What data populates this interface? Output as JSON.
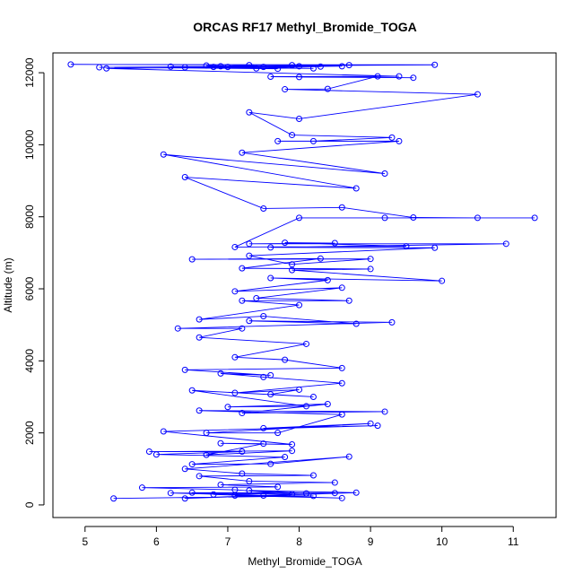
{
  "chart_data": {
    "type": "line",
    "title": "ORCAS RF17 Methyl_Bromide_TOGA",
    "xlabel": "Methyl_Bromide_TOGA",
    "ylabel": "Altitude (m)",
    "xlim": [
      4.55,
      11.6
    ],
    "ylim": [
      -350,
      12550
    ],
    "xticks": [
      5,
      6,
      7,
      8,
      9,
      10,
      11
    ],
    "yticks": [
      0,
      2000,
      4000,
      6000,
      8000,
      10000,
      12000
    ],
    "grid": false,
    "series": [
      {
        "color": "#0000ff",
        "marker": "open-circle",
        "points": [
          [
            5.4,
            180
          ],
          [
            8.2,
            250
          ],
          [
            7.1,
            260
          ],
          [
            8.6,
            190
          ],
          [
            6.8,
            290
          ],
          [
            8.5,
            330
          ],
          [
            6.5,
            340
          ],
          [
            7.5,
            260
          ],
          [
            6.2,
            330
          ],
          [
            8.1,
            320
          ],
          [
            7.3,
            400
          ],
          [
            8.8,
            340
          ],
          [
            6.4,
            180
          ],
          [
            7.9,
            300
          ],
          [
            7.1,
            420
          ],
          [
            5.8,
            480
          ],
          [
            7.7,
            500
          ],
          [
            6.9,
            560
          ],
          [
            8.5,
            620
          ],
          [
            7.3,
            660
          ],
          [
            6.6,
            800
          ],
          [
            8.2,
            820
          ],
          [
            7.2,
            870
          ],
          [
            6.4,
            1000
          ],
          [
            8.7,
            1340
          ],
          [
            7.6,
            1140
          ],
          [
            6.5,
            1130
          ],
          [
            7.8,
            1330
          ],
          [
            6.0,
            1400
          ],
          [
            7.2,
            1480
          ],
          [
            5.9,
            1480
          ],
          [
            7.9,
            1500
          ],
          [
            6.7,
            1390
          ],
          [
            7.5,
            1700
          ],
          [
            6.9,
            1710
          ],
          [
            7.9,
            1680
          ],
          [
            6.1,
            2040
          ],
          [
            9.1,
            2200
          ],
          [
            7.5,
            2130
          ],
          [
            9.0,
            2260
          ],
          [
            6.7,
            2000
          ],
          [
            7.7,
            2000
          ],
          [
            8.6,
            2510
          ],
          [
            6.6,
            2620
          ],
          [
            9.2,
            2590
          ],
          [
            7.2,
            2550
          ],
          [
            8.4,
            2800
          ],
          [
            7.0,
            2720
          ],
          [
            8.1,
            2740
          ],
          [
            6.5,
            3180
          ],
          [
            8.2,
            3000
          ],
          [
            7.6,
            3070
          ],
          [
            8.0,
            3200
          ],
          [
            7.1,
            3110
          ],
          [
            8.6,
            3380
          ],
          [
            7.5,
            3550
          ],
          [
            6.9,
            3650
          ],
          [
            7.6,
            3600
          ],
          [
            6.4,
            3750
          ],
          [
            8.6,
            3800
          ],
          [
            7.8,
            4030
          ],
          [
            7.1,
            4100
          ],
          [
            8.1,
            4470
          ],
          [
            6.6,
            4650
          ],
          [
            7.2,
            4900
          ],
          [
            6.3,
            4900
          ],
          [
            9.3,
            5070
          ],
          [
            7.3,
            5110
          ],
          [
            8.8,
            5030
          ],
          [
            7.5,
            5240
          ],
          [
            6.6,
            5150
          ],
          [
            8.0,
            5550
          ],
          [
            7.2,
            5670
          ],
          [
            8.7,
            5670
          ],
          [
            7.4,
            5740
          ],
          [
            8.6,
            6030
          ],
          [
            7.1,
            5930
          ],
          [
            8.4,
            6240
          ],
          [
            7.6,
            6300
          ],
          [
            10.0,
            6220
          ],
          [
            7.9,
            6520
          ],
          [
            9.0,
            6550
          ],
          [
            7.2,
            6570
          ],
          [
            8.3,
            6840
          ],
          [
            6.5,
            6820
          ],
          [
            9.0,
            6830
          ],
          [
            7.9,
            6680
          ],
          [
            7.3,
            6920
          ],
          [
            9.9,
            7140
          ],
          [
            7.6,
            7150
          ],
          [
            10.9,
            7250
          ],
          [
            7.3,
            7250
          ],
          [
            8.5,
            7270
          ],
          [
            7.8,
            7280
          ],
          [
            9.5,
            7180
          ],
          [
            7.1,
            7160
          ],
          [
            8.0,
            7970
          ],
          [
            11.3,
            7970
          ],
          [
            9.2,
            7970
          ],
          [
            10.5,
            7970
          ],
          [
            9.6,
            7980
          ],
          [
            8.6,
            8260
          ],
          [
            7.5,
            8230
          ],
          [
            6.4,
            9100
          ],
          [
            8.8,
            8790
          ],
          [
            6.1,
            9730
          ],
          [
            9.2,
            9200
          ],
          [
            7.2,
            9780
          ],
          [
            9.4,
            10100
          ],
          [
            7.7,
            10100
          ],
          [
            8.2,
            10100
          ],
          [
            9.3,
            10200
          ],
          [
            7.9,
            10270
          ],
          [
            7.3,
            10900
          ],
          [
            8.0,
            10720
          ],
          [
            10.5,
            11400
          ],
          [
            7.8,
            11540
          ],
          [
            8.4,
            11550
          ],
          [
            9.1,
            11900
          ],
          [
            7.6,
            11890
          ],
          [
            9.6,
            11860
          ],
          [
            8.0,
            11880
          ],
          [
            9.4,
            11900
          ],
          [
            5.3,
            12120
          ],
          [
            8.6,
            12180
          ],
          [
            6.2,
            12170
          ],
          [
            7.4,
            12120
          ],
          [
            6.7,
            12200
          ],
          [
            8.2,
            12120
          ],
          [
            6.4,
            12150
          ],
          [
            7.7,
            12110
          ],
          [
            5.2,
            12150
          ],
          [
            8.0,
            12180
          ],
          [
            6.8,
            12160
          ],
          [
            7.0,
            12160
          ],
          [
            8.7,
            12210
          ],
          [
            4.8,
            12230
          ],
          [
            9.9,
            12220
          ],
          [
            6.9,
            12180
          ],
          [
            7.3,
            12210
          ],
          [
            7.5,
            12160
          ],
          [
            8.3,
            12170
          ],
          [
            7.9,
            12210
          ]
        ]
      }
    ]
  }
}
